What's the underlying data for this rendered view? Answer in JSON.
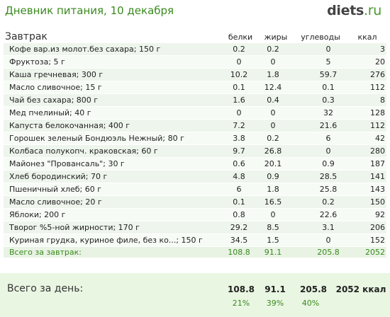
{
  "header": {
    "title": "Дневник питания, 10 декабря",
    "logo_main": "diets",
    "logo_tld": ".ru"
  },
  "meal": {
    "name": "Завтрак",
    "columns": [
      "белки",
      "жиры",
      "углеводы",
      "ккал"
    ],
    "rows": [
      {
        "name": "Кофе вар.из молот.без сахара; 150 г",
        "p": "0.2",
        "f": "0.2",
        "c": "0",
        "k": "3"
      },
      {
        "name": "Фруктоза; 5 г",
        "p": "0",
        "f": "0",
        "c": "5",
        "k": "20"
      },
      {
        "name": "Каша гречневая; 300 г",
        "p": "10.2",
        "f": "1.8",
        "c": "59.7",
        "k": "276"
      },
      {
        "name": "Масло сливочное; 15 г",
        "p": "0.1",
        "f": "12.4",
        "c": "0.1",
        "k": "112"
      },
      {
        "name": "Чай без сахара; 800 г",
        "p": "1.6",
        "f": "0.4",
        "c": "0.3",
        "k": "8"
      },
      {
        "name": "Мед пчелиный; 40 г",
        "p": "0",
        "f": "0",
        "c": "32",
        "k": "128"
      },
      {
        "name": "Капуста белокочанная; 400 г",
        "p": "7.2",
        "f": "0",
        "c": "21.6",
        "k": "112"
      },
      {
        "name": "Горошек зеленый Бондюэль Нежный; 80 г",
        "p": "3.8",
        "f": "0.2",
        "c": "6",
        "k": "42"
      },
      {
        "name": "Колбаса полукопч. краковская; 60 г",
        "p": "9.7",
        "f": "26.8",
        "c": "0",
        "k": "280"
      },
      {
        "name": "Майонез \"Провансаль\"; 30 г",
        "p": "0.6",
        "f": "20.1",
        "c": "0.9",
        "k": "187"
      },
      {
        "name": "Хлеб бородинский; 70 г",
        "p": "4.8",
        "f": "0.9",
        "c": "28.5",
        "k": "141"
      },
      {
        "name": "Пшеничный хлеб; 60 г",
        "p": "6",
        "f": "1.8",
        "c": "25.8",
        "k": "143"
      },
      {
        "name": "Масло сливочное; 20 г",
        "p": "0.1",
        "f": "16.5",
        "c": "0.2",
        "k": "150"
      },
      {
        "name": "Яблоки; 200 г",
        "p": "0.8",
        "f": "0",
        "c": "22.6",
        "k": "92"
      },
      {
        "name": "Творог %5-ной жирности; 170 г",
        "p": "29.2",
        "f": "8.5",
        "c": "3.1",
        "k": "206"
      },
      {
        "name": "Куриная грудка, куриное филе, без ко...; 150 г",
        "p": "34.5",
        "f": "1.5",
        "c": "0",
        "k": "152"
      }
    ],
    "total": {
      "label": "Всего за завтрак:",
      "p": "108.8",
      "f": "91.1",
      "c": "205.8",
      "k": "2052"
    }
  },
  "day": {
    "label": "Всего за день:",
    "p": "108.8",
    "f": "91.1",
    "c": "205.8",
    "k": "2052 ккал",
    "pp": "21%",
    "fp": "39%",
    "cp": "40%"
  }
}
